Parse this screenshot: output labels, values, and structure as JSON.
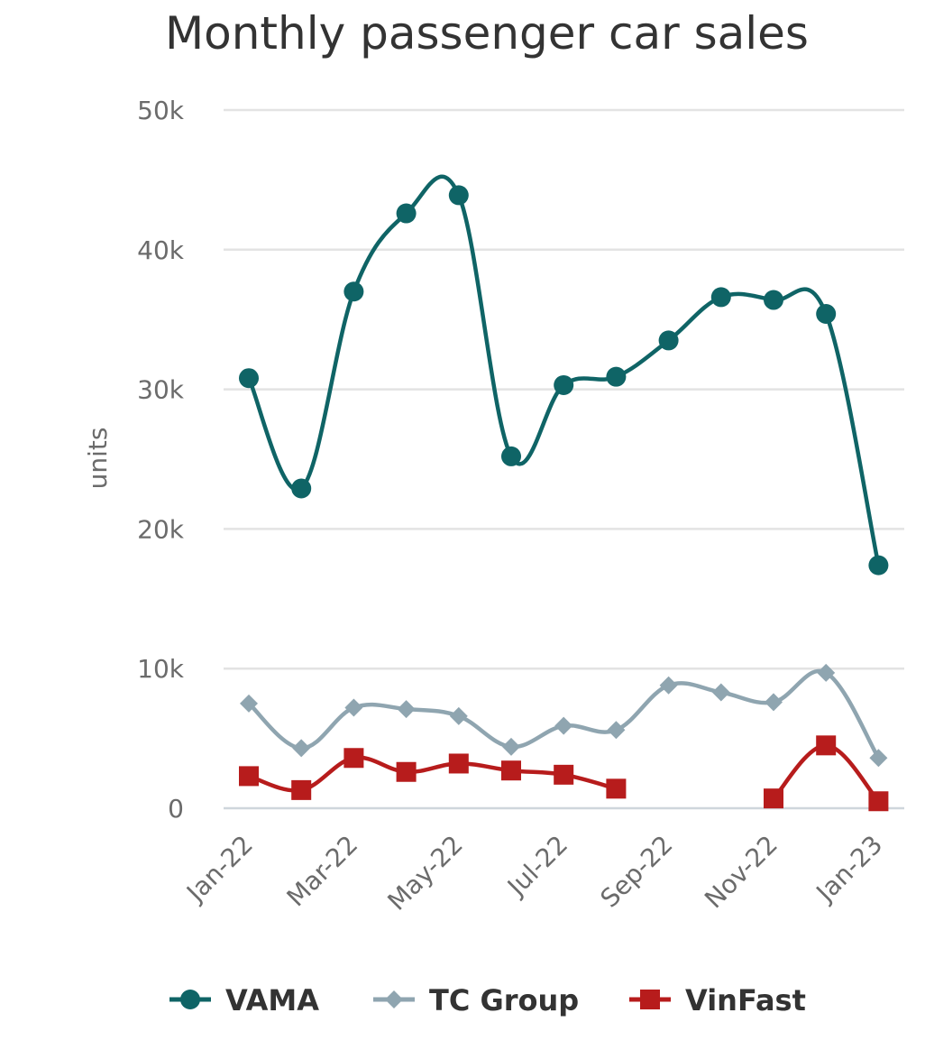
{
  "chart_data": {
    "type": "line",
    "title": "Monthly passenger car sales",
    "ylabel": "units",
    "xlabel": "",
    "x": [
      "Jan-22",
      "Feb-22",
      "Mar-22",
      "Apr-22",
      "May-22",
      "Jun-22",
      "Jul-22",
      "Aug-22",
      "Sep-22",
      "Oct-22",
      "Nov-22",
      "Dec-22",
      "Jan-23"
    ],
    "x_tick_labels": [
      "Jan-22",
      "Mar-22",
      "May-22",
      "Jul-22",
      "Sep-22",
      "Nov-22",
      "Jan-23"
    ],
    "y_tick_labels": [
      "0",
      "10k",
      "20k",
      "30k",
      "40k",
      "50k"
    ],
    "y_ticks": [
      0,
      10000,
      20000,
      30000,
      40000,
      50000
    ],
    "ylim": [
      0,
      50000
    ],
    "grid": true,
    "legend_position": "bottom",
    "series": [
      {
        "name": "VAMA",
        "color": "#0f6466",
        "marker": "circle",
        "values": [
          30800,
          22900,
          37000,
          42600,
          43900,
          25200,
          30300,
          30900,
          33500,
          36600,
          36400,
          35400,
          17400
        ]
      },
      {
        "name": "TC Group",
        "color": "#8fa5b0",
        "marker": "diamond",
        "values": [
          7500,
          4300,
          7200,
          7100,
          6600,
          4400,
          5900,
          5600,
          8800,
          8300,
          7600,
          9700,
          3600
        ]
      },
      {
        "name": "VinFast",
        "color": "#b71c1c",
        "marker": "square",
        "values": [
          2300,
          1300,
          3600,
          2600,
          3200,
          2700,
          2400,
          1400,
          null,
          null,
          700,
          4500,
          500
        ]
      }
    ]
  }
}
